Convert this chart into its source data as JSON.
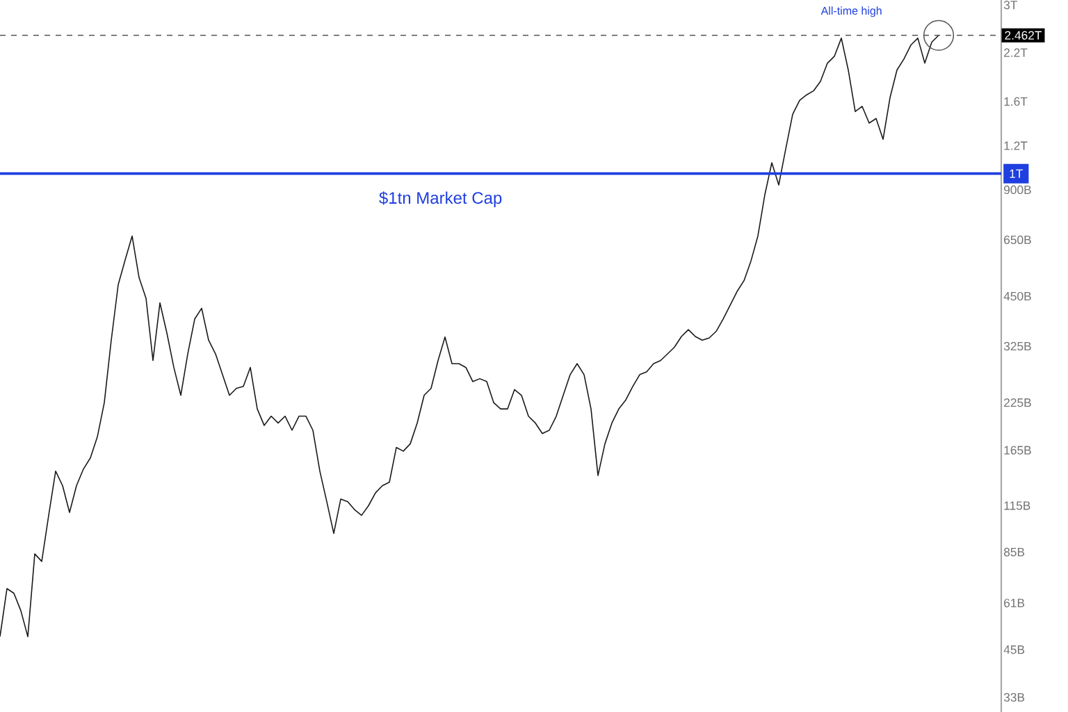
{
  "chart_data": {
    "type": "line",
    "log": "y",
    "categories": [
      null,
      null,
      null,
      null,
      null,
      null,
      null,
      null,
      null,
      null,
      null,
      null,
      null,
      null,
      null,
      null,
      null,
      null,
      null,
      null,
      null,
      null,
      null,
      null,
      null,
      null,
      null,
      null,
      null,
      null,
      null,
      null,
      null,
      null,
      null,
      null,
      null,
      null,
      null,
      null,
      null,
      null,
      null,
      null,
      null,
      null,
      null,
      null,
      null,
      null,
      null,
      null,
      null,
      null,
      null,
      null,
      null,
      null,
      null,
      null,
      null,
      null,
      null,
      null,
      null,
      null,
      null,
      null,
      null,
      null,
      null,
      null,
      null,
      null,
      null,
      null,
      null,
      null,
      null,
      null,
      null,
      null,
      null,
      null,
      null,
      null,
      null,
      null,
      null,
      null,
      null,
      null,
      null,
      null,
      null,
      null,
      null,
      null,
      null,
      null,
      null,
      null,
      null,
      null,
      null,
      null,
      null,
      null,
      null,
      null,
      null,
      null,
      null,
      null,
      null,
      null,
      null,
      null,
      null,
      null,
      null,
      null,
      null,
      null,
      null,
      null,
      null,
      null,
      null,
      null,
      null,
      null,
      null,
      null,
      null,
      null
    ],
    "values": [
      49000000000.0,
      67000000000.0,
      65000000000.0,
      58000000000.0,
      49000000000.0,
      84000000000.0,
      80000000000.0,
      108000000000.0,
      144000000000.0,
      131000000000.0,
      110000000000.0,
      131000000000.0,
      146000000000.0,
      157000000000.0,
      180000000000.0,
      225000000000.0,
      338000000000.0,
      485000000000.0,
      570000000000.0,
      666000000000.0,
      508000000000.0,
      444000000000.0,
      296000000000.0,
      431000000000.0,
      354000000000.0,
      283000000000.0,
      236000000000.0,
      309000000000.0,
      388000000000.0,
      416000000000.0,
      338000000000.0,
      309000000000.0,
      270000000000.0,
      236000000000.0,
      247000000000.0,
      250000000000.0,
      283000000000.0,
      216000000000.0,
      194000000000.0,
      206000000000.0,
      197000000000.0,
      206000000000.0,
      188000000000.0,
      206000000000.0,
      206000000000.0,
      188000000000.0,
      144000000000.0,
      118000000000.0,
      96000000000.0,
      120000000000.0,
      118000000000.0,
      112000000000.0,
      108000000000.0,
      115000000000.0,
      125000000000.0,
      131000000000.0,
      134000000000.0,
      168000000000.0,
      164000000000.0,
      172000000000.0,
      197000000000.0,
      236000000000.0,
      247000000000.0,
      296000000000.0,
      345000000000.0,
      290000000000.0,
      290000000000.0,
      283000000000.0,
      258000000000.0,
      263000000000.0,
      258000000000.0,
      225000000000.0,
      216000000000.0,
      216000000000.0,
      245000000000.0,
      236000000000.0,
      206000000000.0,
      197000000000.0,
      184000000000.0,
      188000000000.0,
      206000000000.0,
      236000000000.0,
      270000000000.0,
      290000000000.0,
      270000000000.0,
      216000000000.0,
      140000000000.0,
      172000000000.0,
      197000000000.0,
      216000000000.0,
      229000000000.0,
      250000000000.0,
      270000000000.0,
      275000000000.0,
      290000000000.0,
      296000000000.0,
      309000000000.0,
      323000000000.0,
      346000000000.0,
      362000000000.0,
      346000000000.0,
      338000000000.0,
      343000000000.0,
      358000000000.0,
      388000000000.0,
      424000000000.0,
      464000000000.0,
      498000000000.0,
      566000000000.0,
      666000000000.0,
      872000000000.0,
      1074000000000.0,
      929000000000.0,
      1174000000000.0,
      1472000000000.0,
      1611000000000.0,
      1670000000000.0,
      1715000000000.0,
      1825000000000.0,
      2054000000000.0,
      2148000000000.0,
      2417000000000.0,
      1964000000000.0,
      1499000000000.0,
      1550000000000.0,
      1390000000000.0,
      1432000000000.0,
      1251000000000.0,
      1640000000000.0,
      1964000000000.0,
      2110000000000.0,
      2311000000000.0,
      2417000000000.0,
      2054000000000.0,
      2353000000000.0,
      2462000000000.0
    ],
    "color": "#1a1a1a",
    "ylim": [
      30000000000.0,
      3100000000000.0
    ],
    "yticks": [
      {
        "value": 3000000000000.0,
        "label": "3T"
      },
      {
        "value": 2200000000000.0,
        "label": "2.2T"
      },
      {
        "value": 1600000000000.0,
        "label": "1.6T"
      },
      {
        "value": 1200000000000.0,
        "label": "1.2T"
      },
      {
        "value": 1000000000000.0,
        "label": "1T"
      },
      {
        "value": 900000000000.0,
        "label": "900B"
      },
      {
        "value": 650000000000.0,
        "label": "650B"
      },
      {
        "value": 450000000000.0,
        "label": "450B"
      },
      {
        "value": 325000000000.0,
        "label": "325B"
      },
      {
        "value": 225000000000.0,
        "label": "225B"
      },
      {
        "value": 165000000000.0,
        "label": "165B"
      },
      {
        "value": 115000000000.0,
        "label": "115B"
      },
      {
        "value": 85000000000.0,
        "label": "85B"
      },
      {
        "value": 61000000000.0,
        "label": "61B"
      },
      {
        "value": 45000000000.0,
        "label": "45B"
      },
      {
        "value": 33000000000.0,
        "label": "33B"
      }
    ],
    "ref_lines": [
      {
        "axis": "y",
        "value": 1000000000000.0,
        "label": "$1tn Market Cap",
        "color": "#1f3fe0",
        "line_style": "solid"
      },
      {
        "axis": "y",
        "value": 2462000000000.0,
        "label": "2.462T",
        "color": "#555555",
        "line_style": "dashed"
      }
    ],
    "annotations": [
      "All-time high"
    ]
  }
}
